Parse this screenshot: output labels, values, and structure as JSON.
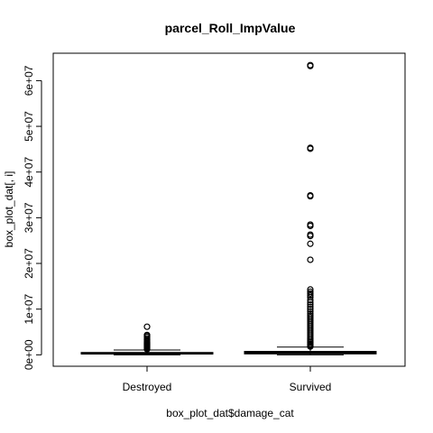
{
  "chart_data": {
    "type": "boxplot",
    "title": "parcel_Roll_ImpValue",
    "xlabel": "box_plot_dat$damage_cat",
    "ylabel": "box_plot_dat[, i]",
    "ylim": [
      -2500000,
      66000000
    ],
    "yticks": [
      0,
      10000000,
      20000000,
      30000000,
      40000000,
      50000000,
      60000000
    ],
    "ytick_labels": [
      "0e+00",
      "1e+07",
      "2e+07",
      "3e+07",
      "4e+07",
      "5e+07",
      "6e+07"
    ],
    "categories": [
      "Destroyed",
      "Survived"
    ],
    "boxes": [
      {
        "category": "Destroyed",
        "whisker_low": 0,
        "q1": 180000,
        "median": 320000,
        "q3": 520000,
        "whisker_high": 1050000,
        "outliers": [
          6150000,
          4350000,
          4200000,
          3950000,
          3600000,
          3300000,
          3050000,
          2800000,
          2600000,
          2400000,
          2250000,
          2100000,
          1950000,
          1800000,
          1650000,
          1500000,
          1350000,
          1200000
        ]
      },
      {
        "category": "Survived",
        "whisker_low": 0,
        "q1": 200000,
        "median": 400000,
        "q3": 750000,
        "whisker_high": 1700000,
        "outliers": [
          63400000,
          63200000,
          45300000,
          45100000,
          34900000,
          34700000,
          28500000,
          28200000,
          26300000,
          26000000,
          24300000,
          20800000,
          14300000,
          13800000,
          13400000,
          13000000,
          12600000,
          12000000,
          11500000,
          11000000,
          10500000,
          10000000,
          9500000,
          9000000,
          8600000,
          8200000,
          7800000,
          7400000,
          7000000,
          6600000,
          6200000,
          5800000,
          5400000,
          5000000,
          4600000,
          4200000,
          3800000,
          3400000,
          3000000,
          2700000,
          2400000,
          2150000,
          1950000,
          1800000
        ]
      }
    ]
  }
}
